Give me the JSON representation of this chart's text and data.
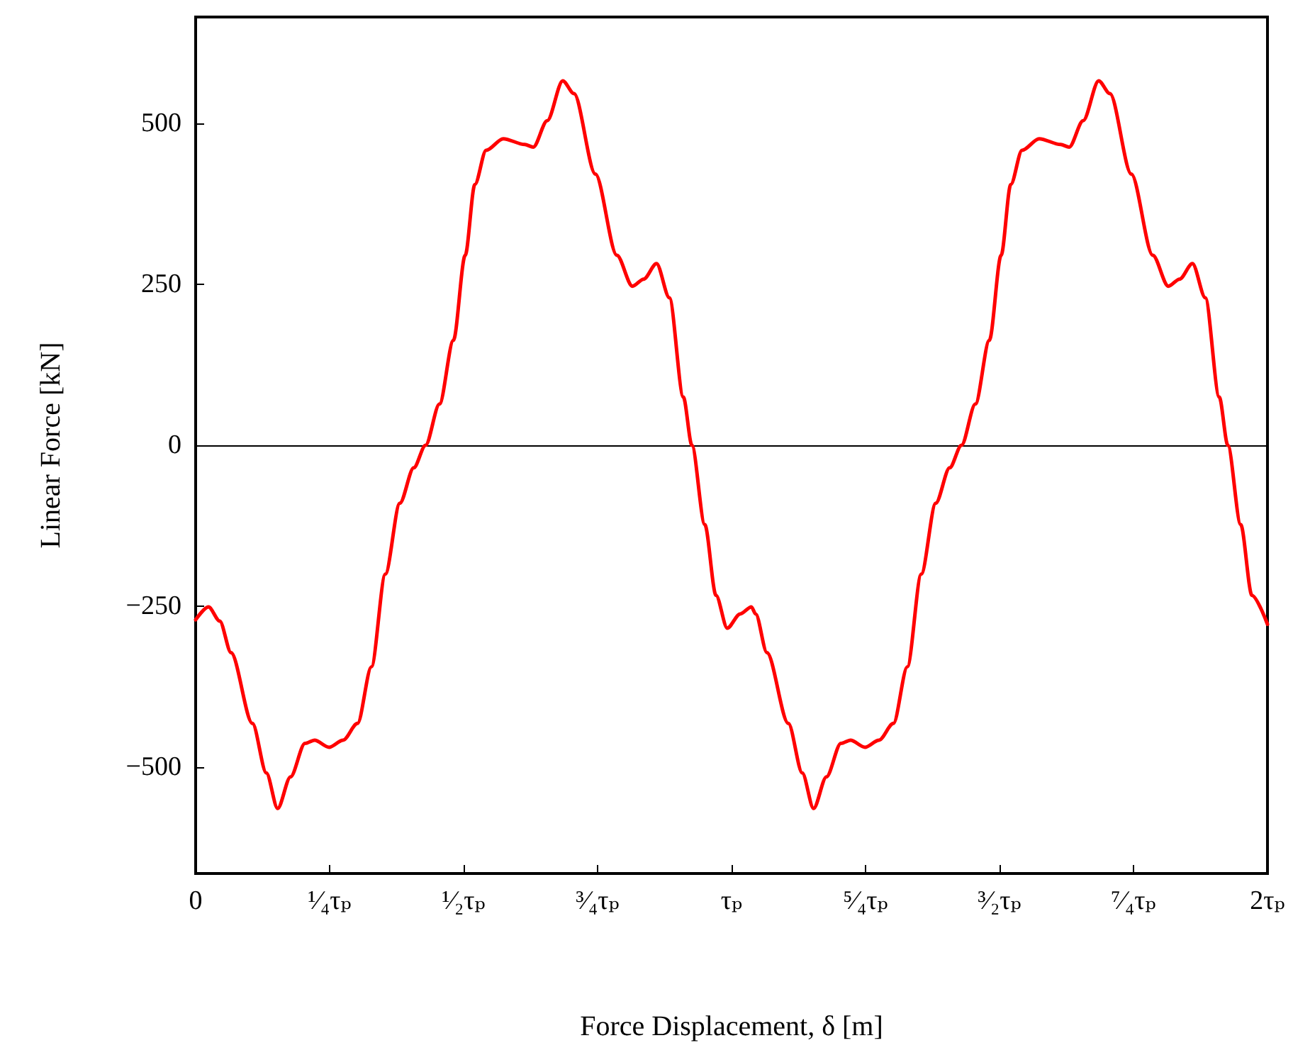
{
  "chart_data": {
    "type": "line",
    "xlabel": "Force Displacement, δ [m]",
    "ylabel": "Linear Force [kN]",
    "xlim": [
      0,
      2
    ],
    "ylim": [
      -665,
      665
    ],
    "xticks": [
      0,
      {
        "value": 0.25,
        "label": "¹⁄₄τₚ"
      },
      {
        "value": 0.5,
        "label": "¹⁄₂τₚ"
      },
      {
        "value": 0.75,
        "label": "³⁄₄τₚ"
      },
      {
        "value": 1,
        "label": "τₚ"
      },
      {
        "value": 1.25,
        "label": "⁵⁄₄τₚ"
      },
      {
        "value": 1.5,
        "label": "³⁄₂τₚ"
      },
      {
        "value": 1.75,
        "label": "⁷⁄₄τₚ"
      },
      {
        "value": 2,
        "label": "2τₚ"
      }
    ],
    "yticks": [
      {
        "value": -500,
        "label": "−500"
      },
      {
        "value": -250,
        "label": "−250"
      },
      0,
      250,
      500
    ],
    "grid": false,
    "marker": "none",
    "line_style": "solid",
    "ref_lines": [
      {
        "axis": "y",
        "value": 0,
        "color": "#000000"
      }
    ],
    "series": [
      {
        "color": "#ff0000",
        "x": [
          0,
          0.024,
          0.045,
          0.066,
          0.106,
          0.132,
          0.153,
          0.177,
          0.204,
          0.222,
          0.249,
          0.275,
          0.302,
          0.328,
          0.354,
          0.381,
          0.407,
          0.429,
          0.455,
          0.481,
          0.503,
          0.521,
          0.542,
          0.574,
          0.614,
          0.63,
          0.656,
          0.685,
          0.706,
          0.746,
          0.786,
          0.815,
          0.836,
          0.86,
          0.884,
          0.91,
          0.926,
          0.95,
          0.971,
          0.992,
          1.016,
          1.037,
          1.045,
          1.066,
          1.106,
          1.132,
          1.153,
          1.177,
          1.204,
          1.222,
          1.249,
          1.275,
          1.302,
          1.328,
          1.354,
          1.381,
          1.407,
          1.429,
          1.455,
          1.481,
          1.503,
          1.521,
          1.542,
          1.574,
          1.614,
          1.63,
          1.656,
          1.685,
          1.706,
          1.746,
          1.786,
          1.815,
          1.836,
          1.86,
          1.884,
          1.91,
          1.926,
          1.95,
          1.971,
          2
        ],
        "values": [
          -271,
          -251,
          -273,
          -322,
          -432,
          -509,
          -564,
          -515,
          -463,
          -458,
          -469,
          -458,
          -432,
          -344,
          -200,
          -90,
          -35,
          0,
          64,
          163,
          295,
          405,
          458,
          476,
          467,
          463,
          504,
          566,
          546,
          421,
          295,
          247,
          258,
          282,
          229,
          75,
          0,
          -123,
          -233,
          -284,
          -262,
          -251,
          -262,
          -322,
          -432,
          -509,
          -564,
          -515,
          -463,
          -458,
          -469,
          -458,
          -432,
          -344,
          -200,
          -90,
          -35,
          0,
          64,
          163,
          295,
          405,
          458,
          476,
          467,
          463,
          504,
          566,
          546,
          421,
          295,
          247,
          258,
          282,
          229,
          75,
          0,
          -123,
          -233,
          -278
        ]
      }
    ]
  }
}
